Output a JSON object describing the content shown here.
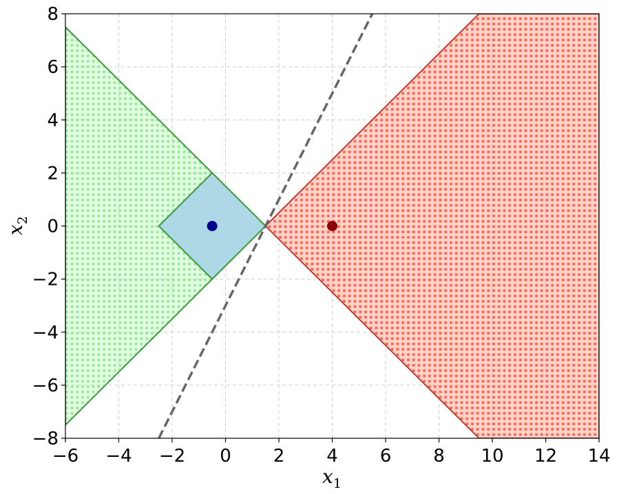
{
  "chart_data": {
    "type": "scatter",
    "title": "",
    "xlabel": "x",
    "xlabel_sub": "1",
    "ylabel": "x",
    "ylabel_sub": "2",
    "xlim": [
      -6,
      14
    ],
    "ylim": [
      -8,
      8
    ],
    "xticks": [
      -6,
      -4,
      -2,
      0,
      2,
      4,
      6,
      8,
      10,
      12,
      14
    ],
    "yticks": [
      -8,
      -6,
      -4,
      -2,
      0,
      2,
      4,
      6,
      8
    ],
    "xtick_labels": [
      "−6",
      "−4",
      "−2",
      "0",
      "2",
      "4",
      "6",
      "8",
      "10",
      "12",
      "14"
    ],
    "ytick_labels": [
      "−8",
      "−6",
      "−4",
      "−2",
      "0",
      "2",
      "4",
      "6",
      "8"
    ],
    "grid": true,
    "legend": "none",
    "regions": [
      {
        "name": "green-region",
        "polygon": [
          [
            -6,
            7.5
          ],
          [
            1.5,
            0
          ],
          [
            -6,
            -7.5
          ]
        ],
        "fill": "#90ee90",
        "dot_color": "#90ee90",
        "edge": "#3a9a3a"
      },
      {
        "name": "red-region",
        "polygon": [
          [
            1.5,
            0
          ],
          [
            9.5,
            8
          ],
          [
            14,
            8
          ],
          [
            14,
            -8
          ],
          [
            9.5,
            -8
          ]
        ],
        "fill": "#ffb6a8",
        "dot_color": "#ff6347",
        "edge": "#c0392b"
      },
      {
        "name": "diamond-region",
        "polygon": [
          [
            -2.5,
            0
          ],
          [
            -0.5,
            2
          ],
          [
            1.5,
            0
          ],
          [
            -0.5,
            -2
          ]
        ],
        "fill": "#add8e6",
        "dot_color": "#add8e6",
        "edge": "#3a9a3a"
      }
    ],
    "lines": [
      {
        "name": "decision-boundary",
        "points": [
          [
            -2.5,
            -8
          ],
          [
            5.5,
            8
          ]
        ],
        "style": "dashed",
        "color": "#666666"
      }
    ],
    "points": [
      {
        "name": "blue-point",
        "x": -0.5,
        "y": 0,
        "color": "#00008b"
      },
      {
        "name": "red-point",
        "x": 4,
        "y": 0,
        "color": "#8b0000"
      }
    ]
  }
}
